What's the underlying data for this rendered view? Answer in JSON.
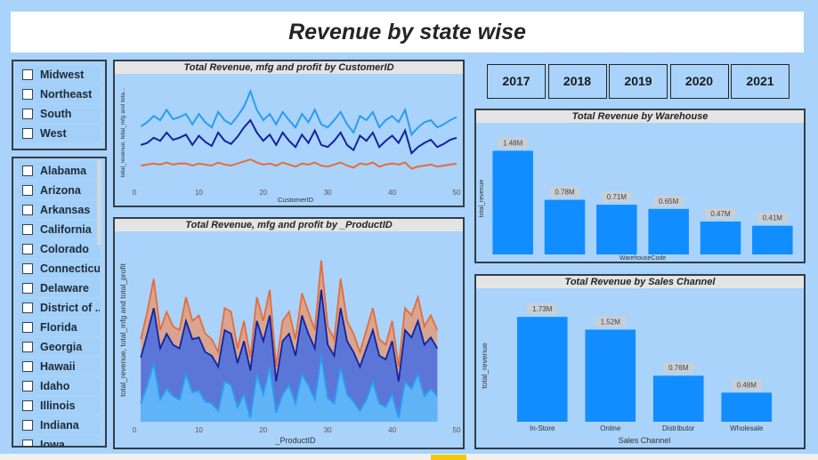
{
  "title": "Revenue by state wise",
  "regions": [
    "Midwest",
    "Northeast",
    "South",
    "West"
  ],
  "states": [
    "Alabama",
    "Arizona",
    "Arkansas",
    "California",
    "Colorado",
    "Connecticut",
    "Delaware",
    "District of ...",
    "Florida",
    "Georgia",
    "Hawaii",
    "Idaho",
    "Illinois",
    "Indiana",
    "Iowa"
  ],
  "years": [
    "2017",
    "2018",
    "2019",
    "2020",
    "2021"
  ],
  "colors": {
    "bar": "#118dff",
    "revenue": "#e66c37",
    "mfg": "#12239e",
    "profit": "#2a9cf0",
    "panel_bg": "#a9d3fb"
  },
  "chart_data": [
    {
      "type": "line",
      "title": "Total Revenue, mfg and profit by CustomerID",
      "xlabel": "CustomerID",
      "ylabel": "total_revenue, total_mfg and tota...",
      "xlim": [
        0,
        50
      ],
      "xticks": [
        0,
        10,
        20,
        30,
        40,
        50
      ],
      "x": [
        1,
        2,
        3,
        4,
        5,
        6,
        7,
        8,
        9,
        10,
        11,
        12,
        13,
        14,
        15,
        16,
        17,
        18,
        19,
        20,
        21,
        22,
        23,
        24,
        25,
        26,
        27,
        28,
        29,
        30,
        31,
        32,
        33,
        34,
        35,
        36,
        37,
        38,
        39,
        40,
        41,
        42,
        43,
        44,
        45,
        46,
        47,
        48,
        49,
        50
      ],
      "series": [
        {
          "values": [
            0.56,
            0.6,
            0.66,
            0.62,
            0.72,
            0.63,
            0.65,
            0.68,
            0.58,
            0.68,
            0.6,
            0.55,
            0.7,
            0.62,
            0.58,
            0.66,
            0.75,
            0.9,
            0.72,
            0.62,
            0.68,
            0.58,
            0.7,
            0.62,
            0.55,
            0.68,
            0.6,
            0.72,
            0.58,
            0.55,
            0.62,
            0.7,
            0.58,
            0.5,
            0.66,
            0.62,
            0.7,
            0.55,
            0.62,
            0.66,
            0.6,
            0.72,
            0.48,
            0.55,
            0.6,
            0.62,
            0.55,
            0.58,
            0.62,
            0.65
          ]
        },
        {
          "values": [
            0.38,
            0.4,
            0.45,
            0.42,
            0.5,
            0.43,
            0.45,
            0.48,
            0.38,
            0.47,
            0.41,
            0.37,
            0.5,
            0.42,
            0.39,
            0.46,
            0.55,
            0.62,
            0.5,
            0.42,
            0.48,
            0.38,
            0.5,
            0.42,
            0.36,
            0.48,
            0.4,
            0.52,
            0.38,
            0.36,
            0.42,
            0.5,
            0.38,
            0.33,
            0.47,
            0.42,
            0.5,
            0.36,
            0.42,
            0.47,
            0.4,
            0.52,
            0.3,
            0.36,
            0.4,
            0.43,
            0.36,
            0.39,
            0.43,
            0.45
          ]
        },
        {
          "values": [
            0.18,
            0.19,
            0.2,
            0.19,
            0.21,
            0.19,
            0.2,
            0.2,
            0.18,
            0.2,
            0.19,
            0.18,
            0.21,
            0.19,
            0.18,
            0.2,
            0.22,
            0.24,
            0.21,
            0.19,
            0.2,
            0.18,
            0.21,
            0.19,
            0.17,
            0.2,
            0.19,
            0.21,
            0.18,
            0.17,
            0.19,
            0.21,
            0.18,
            0.16,
            0.2,
            0.19,
            0.21,
            0.17,
            0.19,
            0.2,
            0.19,
            0.21,
            0.15,
            0.17,
            0.18,
            0.19,
            0.17,
            0.18,
            0.19,
            0.2
          ]
        }
      ]
    },
    {
      "type": "area",
      "title": "Total Revenue, mfg and profit by _ProductID",
      "xlabel": "_ProductID",
      "ylabel": "total_revenue, total_mfg and total_profit",
      "xlim": [
        0,
        50
      ],
      "xticks": [
        0,
        10,
        20,
        30,
        40,
        50
      ],
      "x": [
        1,
        2,
        3,
        4,
        5,
        6,
        7,
        8,
        9,
        10,
        11,
        12,
        13,
        14,
        15,
        16,
        17,
        18,
        19,
        20,
        21,
        22,
        23,
        24,
        25,
        26,
        27,
        28,
        29,
        30,
        31,
        32,
        33,
        34,
        35,
        36,
        37,
        38,
        39,
        40,
        41,
        42,
        43,
        44,
        45,
        46,
        47
      ],
      "series": [
        {
          "values": [
            0.45,
            0.6,
            0.78,
            0.5,
            0.6,
            0.52,
            0.5,
            0.68,
            0.55,
            0.58,
            0.48,
            0.45,
            0.38,
            0.62,
            0.6,
            0.4,
            0.55,
            0.35,
            0.68,
            0.55,
            0.72,
            0.3,
            0.55,
            0.6,
            0.45,
            0.7,
            0.6,
            0.5,
            0.88,
            0.52,
            0.45,
            0.78,
            0.55,
            0.48,
            0.38,
            0.5,
            0.62,
            0.45,
            0.42,
            0.55,
            0.3,
            0.62,
            0.58,
            0.68,
            0.52,
            0.58,
            0.5
          ]
        },
        {
          "values": [
            0.35,
            0.48,
            0.62,
            0.4,
            0.48,
            0.42,
            0.4,
            0.55,
            0.45,
            0.46,
            0.38,
            0.36,
            0.3,
            0.5,
            0.48,
            0.32,
            0.44,
            0.28,
            0.55,
            0.44,
            0.58,
            0.22,
            0.44,
            0.48,
            0.36,
            0.58,
            0.48,
            0.4,
            0.72,
            0.42,
            0.36,
            0.62,
            0.44,
            0.38,
            0.3,
            0.4,
            0.5,
            0.36,
            0.34,
            0.44,
            0.22,
            0.5,
            0.46,
            0.55,
            0.42,
            0.46,
            0.4
          ]
        },
        {
          "values": [
            0.1,
            0.2,
            0.32,
            0.12,
            0.18,
            0.14,
            0.12,
            0.26,
            0.16,
            0.17,
            0.11,
            0.1,
            0.06,
            0.22,
            0.2,
            0.08,
            0.15,
            0.02,
            0.26,
            0.15,
            0.3,
            0.05,
            0.15,
            0.2,
            0.1,
            0.26,
            0.2,
            0.12,
            0.36,
            0.13,
            0.1,
            0.3,
            0.15,
            0.11,
            0.06,
            0.12,
            0.22,
            0.1,
            0.08,
            0.15,
            0.02,
            0.22,
            0.18,
            0.26,
            0.14,
            0.18,
            0.14
          ]
        }
      ]
    },
    {
      "type": "bar",
      "title": "Total Revenue by Warehouse",
      "xlabel": "WarehouseCode",
      "ylabel": "total_revenue",
      "categories": [
        "WH1",
        "WH2",
        "WH3",
        "WH4",
        "WH5",
        "WH6"
      ],
      "values": [
        1.48,
        0.78,
        0.71,
        0.65,
        0.47,
        0.41
      ],
      "labels": [
        "1.48M",
        "0.78M",
        "0.71M",
        "0.65M",
        "0.47M",
        "0.41M"
      ],
      "ylim": [
        0,
        1.6
      ]
    },
    {
      "type": "bar",
      "title": "Total Revenue by Sales Channel",
      "xlabel": "Sales Channel",
      "ylabel": "total_revenue",
      "categories": [
        "In-Store",
        "Online",
        "Distributor",
        "Wholesale"
      ],
      "values": [
        1.73,
        1.52,
        0.76,
        0.48
      ],
      "labels": [
        "1.73M",
        "1.52M",
        "0.76M",
        "0.48M"
      ],
      "ylim": [
        0,
        1.85
      ]
    }
  ]
}
